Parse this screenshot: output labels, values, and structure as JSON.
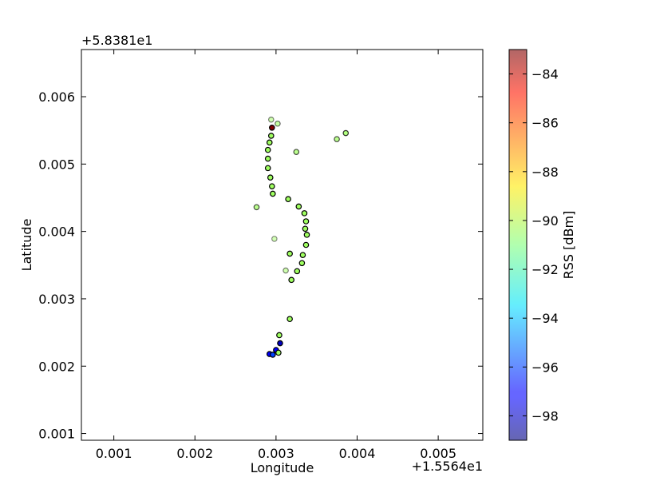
{
  "chart_data": {
    "type": "scatter",
    "xlabel": "Longitude",
    "ylabel": "Latitude",
    "x_offset_label": "+1.5564e1",
    "y_offset_label": "+5.8381e1",
    "xlim": [
      0.0006,
      0.00555
    ],
    "ylim": [
      0.0009,
      0.0067
    ],
    "x_ticks": [
      0.001,
      0.002,
      0.003,
      0.004,
      0.005
    ],
    "x_tick_labels": [
      "0.001",
      "0.002",
      "0.003",
      "0.004",
      "0.005"
    ],
    "y_ticks": [
      0.001,
      0.002,
      0.003,
      0.004,
      0.005,
      0.006
    ],
    "y_tick_labels": [
      "0.001",
      "0.002",
      "0.003",
      "0.004",
      "0.005",
      "0.006"
    ],
    "colorbar": {
      "label": "RSS [dBm]",
      "range": [
        -99,
        -83
      ],
      "ticks": [
        -84,
        -86,
        -88,
        -90,
        -92,
        -94,
        -96,
        -98
      ],
      "tick_labels": [
        "−84",
        "−86",
        "−88",
        "−90",
        "−92",
        "−94",
        "−96",
        "−98"
      ],
      "colormap": "jet"
    },
    "grid": false,
    "points": [
      {
        "x": 0.00294,
        "y": 0.00566,
        "rss": -90.5,
        "alpha": 0.5
      },
      {
        "x": 0.00302,
        "y": 0.0056,
        "rss": -90.5,
        "alpha": 0.6
      },
      {
        "x": 0.00295,
        "y": 0.00554,
        "rss": -83,
        "alpha": 1
      },
      {
        "x": 0.00294,
        "y": 0.00542,
        "rss": -90.5,
        "alpha": 1
      },
      {
        "x": 0.00292,
        "y": 0.00532,
        "rss": -90.5,
        "alpha": 1
      },
      {
        "x": 0.0029,
        "y": 0.00521,
        "rss": -90.5,
        "alpha": 1
      },
      {
        "x": 0.0029,
        "y": 0.00508,
        "rss": -90.5,
        "alpha": 1
      },
      {
        "x": 0.0029,
        "y": 0.00494,
        "rss": -90.5,
        "alpha": 1
      },
      {
        "x": 0.00293,
        "y": 0.0048,
        "rss": -90.5,
        "alpha": 1
      },
      {
        "x": 0.00295,
        "y": 0.00467,
        "rss": -90.5,
        "alpha": 1
      },
      {
        "x": 0.00296,
        "y": 0.00456,
        "rss": -90.5,
        "alpha": 1
      },
      {
        "x": 0.00325,
        "y": 0.00518,
        "rss": -90.5,
        "alpha": 0.7
      },
      {
        "x": 0.00375,
        "y": 0.00537,
        "rss": -90.5,
        "alpha": 0.7
      },
      {
        "x": 0.00386,
        "y": 0.00546,
        "rss": -90.5,
        "alpha": 0.8
      },
      {
        "x": 0.00276,
        "y": 0.00436,
        "rss": -90.5,
        "alpha": 0.7
      },
      {
        "x": 0.00315,
        "y": 0.00448,
        "rss": -90.5,
        "alpha": 1
      },
      {
        "x": 0.00328,
        "y": 0.00437,
        "rss": -90.5,
        "alpha": 1
      },
      {
        "x": 0.00335,
        "y": 0.00427,
        "rss": -90.5,
        "alpha": 1
      },
      {
        "x": 0.00337,
        "y": 0.00415,
        "rss": -90.5,
        "alpha": 1
      },
      {
        "x": 0.00336,
        "y": 0.00404,
        "rss": -90.5,
        "alpha": 1
      },
      {
        "x": 0.00338,
        "y": 0.00395,
        "rss": -90.5,
        "alpha": 1
      },
      {
        "x": 0.00298,
        "y": 0.00389,
        "rss": -90.5,
        "alpha": 0.45
      },
      {
        "x": 0.00337,
        "y": 0.0038,
        "rss": -90.5,
        "alpha": 1
      },
      {
        "x": 0.00317,
        "y": 0.00367,
        "rss": -90.5,
        "alpha": 1
      },
      {
        "x": 0.00333,
        "y": 0.00365,
        "rss": -90.5,
        "alpha": 1
      },
      {
        "x": 0.00332,
        "y": 0.00353,
        "rss": -90.5,
        "alpha": 1
      },
      {
        "x": 0.00312,
        "y": 0.00342,
        "rss": -90.5,
        "alpha": 0.5
      },
      {
        "x": 0.00326,
        "y": 0.00341,
        "rss": -90.5,
        "alpha": 1
      },
      {
        "x": 0.00319,
        "y": 0.00328,
        "rss": -90.5,
        "alpha": 1
      },
      {
        "x": 0.00317,
        "y": 0.0027,
        "rss": -90.5,
        "alpha": 1
      },
      {
        "x": 0.00304,
        "y": 0.00246,
        "rss": -90.5,
        "alpha": 1
      },
      {
        "x": 0.00305,
        "y": 0.00234,
        "rss": -98,
        "alpha": 1
      },
      {
        "x": 0.003,
        "y": 0.00224,
        "rss": -97,
        "alpha": 1
      },
      {
        "x": 0.00303,
        "y": 0.0022,
        "rss": -90.5,
        "alpha": 1
      },
      {
        "x": 0.00292,
        "y": 0.00218,
        "rss": -97,
        "alpha": 1
      },
      {
        "x": 0.00296,
        "y": 0.00217,
        "rss": -96,
        "alpha": 1
      }
    ]
  }
}
